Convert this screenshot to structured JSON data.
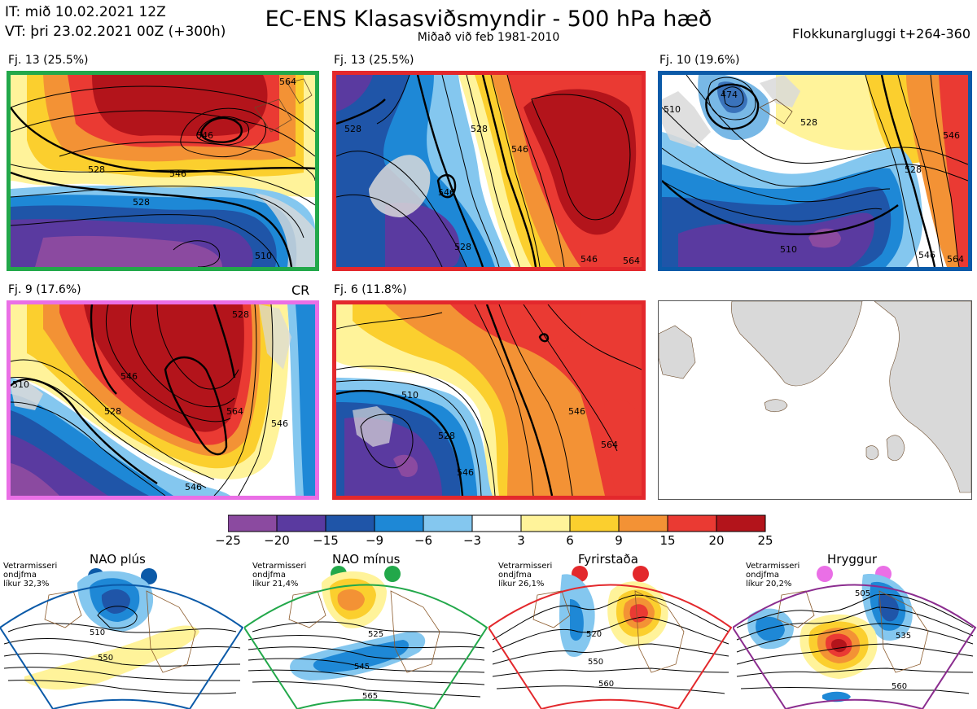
{
  "header": {
    "it_line": "IT: mið 10.02.2021 12Z",
    "vt_line": "VT: þri 23.02.2021 00Z  (+300h)",
    "title": "EC-ENS Klasasviðsmyndir - 500 hPa hæð",
    "subtitle": "Miðað við feb 1981-2010",
    "window": "Flokkunargluggi t+264-360"
  },
  "panels": [
    {
      "label": "Fj. 13 (25.5%)",
      "border": "#22a84a",
      "extra": ""
    },
    {
      "label": "Fj. 13 (25.5%)",
      "border": "#e3282c",
      "extra": ""
    },
    {
      "label": "Fj. 10 (19.6%)",
      "border": "#0b5aa8",
      "extra": ""
    },
    {
      "label": "Fj. 9 (17.6%)",
      "border": "#ea6fe6",
      "extra": "CR"
    },
    {
      "label": "Fj. 6 (11.8%)",
      "border": "#e3282c",
      "extra": ""
    }
  ],
  "contour_labels": {
    "p1": [
      "546",
      "546",
      "528",
      "510",
      "528",
      "564"
    ],
    "p2": [
      "528",
      "528",
      "546",
      "546",
      "528",
      "546",
      "564"
    ],
    "p3": [
      "474",
      "510",
      "546",
      "528",
      "510",
      "528",
      "546",
      "564"
    ],
    "p4": [
      "546",
      "528",
      "510",
      "528",
      "546",
      "564",
      "546"
    ],
    "p5": [
      "510",
      "528",
      "546",
      "546",
      "564"
    ]
  },
  "colorbar": {
    "ticks": [
      "−25",
      "−20",
      "−15",
      "−9",
      "−6",
      "−3",
      "3",
      "6",
      "9",
      "15",
      "20",
      "25"
    ],
    "colors": [
      "#8b4aa0",
      "#5a3aa0",
      "#1f55a8",
      "#1e88d6",
      "#84c7ef",
      "#ffffff",
      "#fff39a",
      "#fbcf2e",
      "#f39235",
      "#ea3a33",
      "#b3141b"
    ]
  },
  "regimes": [
    {
      "title": "NAO plús",
      "note": [
        "Vetrarmisseri",
        "ondjfma",
        "líkur 32,3%"
      ],
      "color": "#0b5aa8",
      "dot": "#0b5aa8",
      "labels": [
        "510",
        "550"
      ]
    },
    {
      "title": "NAO mínus",
      "note": [
        "Vetrarmisseri",
        "ondjfma",
        "líkur 21,4%"
      ],
      "color": "#22a84a",
      "dot": "#22a84a",
      "labels": [
        "525",
        "545",
        "565"
      ]
    },
    {
      "title": "Fyrirstaða",
      "note": [
        "Vetrarmisseri",
        "ondjfma",
        "líkur 26,1%"
      ],
      "color": "#e3282c",
      "dot": "#e3282c",
      "labels": [
        "520",
        "550",
        "560"
      ]
    },
    {
      "title": "Hryggur",
      "note": [
        "Vetrarmisseri",
        "ondjfma",
        "líkur 20,2%"
      ],
      "color": "#8b2d8f",
      "dot": "#ea6fe6",
      "labels": [
        "505",
        "535",
        "560"
      ]
    }
  ],
  "chart_data": {
    "type": "heatmap",
    "title": "EC-ENS Klasasviðsmyndir - 500 hPa hæð",
    "variable": "500 hPa height anomaly",
    "reference": "feb 1981-2010",
    "colorbar_ticks": [
      -25,
      -20,
      -15,
      -9,
      -6,
      -3,
      3,
      6,
      9,
      15,
      20,
      25
    ],
    "clusters": [
      {
        "name": "Fj. 13",
        "percent": 25.5
      },
      {
        "name": "Fj. 13",
        "percent": 25.5
      },
      {
        "name": "Fj. 10",
        "percent": 19.6
      },
      {
        "name": "Fj. 9",
        "percent": 17.6
      },
      {
        "name": "Fj. 6",
        "percent": 11.8
      }
    ],
    "climatological_regimes": [
      {
        "name": "NAO plús",
        "probability": 32.3
      },
      {
        "name": "NAO mínus",
        "probability": 21.4
      },
      {
        "name": "Fyrirstaða",
        "probability": 26.1
      },
      {
        "name": "Hryggur",
        "probability": 20.2
      }
    ]
  }
}
